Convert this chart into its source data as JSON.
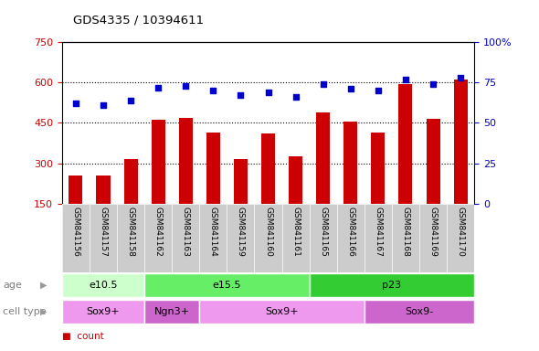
{
  "title": "GDS4335 / 10394611",
  "samples": [
    "GSM841156",
    "GSM841157",
    "GSM841158",
    "GSM841162",
    "GSM841163",
    "GSM841164",
    "GSM841159",
    "GSM841160",
    "GSM841161",
    "GSM841165",
    "GSM841166",
    "GSM841167",
    "GSM841168",
    "GSM841169",
    "GSM841170"
  ],
  "counts": [
    255,
    255,
    315,
    460,
    470,
    415,
    315,
    410,
    325,
    490,
    455,
    415,
    595,
    465,
    610
  ],
  "percentiles": [
    62,
    61,
    64,
    72,
    73,
    70,
    67,
    69,
    66,
    74,
    71,
    70,
    77,
    74,
    78
  ],
  "ylim_left": [
    150,
    750
  ],
  "ylim_right": [
    0,
    100
  ],
  "yticks_left": [
    150,
    300,
    450,
    600,
    750
  ],
  "yticks_right": [
    0,
    25,
    50,
    75,
    100
  ],
  "bar_color": "#cc0000",
  "dot_color": "#0000cc",
  "tick_area_color": "#cccccc",
  "age_groups": [
    {
      "label": "e10.5",
      "start": 0,
      "end": 3,
      "color": "#ccffcc"
    },
    {
      "label": "e15.5",
      "start": 3,
      "end": 9,
      "color": "#66ee66"
    },
    {
      "label": "p23",
      "start": 9,
      "end": 15,
      "color": "#33cc33"
    }
  ],
  "cell_groups": [
    {
      "label": "Sox9+",
      "start": 0,
      "end": 3,
      "color": "#ee99ee"
    },
    {
      "label": "Ngn3+",
      "start": 3,
      "end": 5,
      "color": "#cc66cc"
    },
    {
      "label": "Sox9+",
      "start": 5,
      "end": 11,
      "color": "#ee99ee"
    },
    {
      "label": "Sox9-",
      "start": 11,
      "end": 15,
      "color": "#cc66cc"
    }
  ],
  "legend_count_color": "#cc0000",
  "legend_dot_color": "#0000cc",
  "arrow_color": "#999999"
}
